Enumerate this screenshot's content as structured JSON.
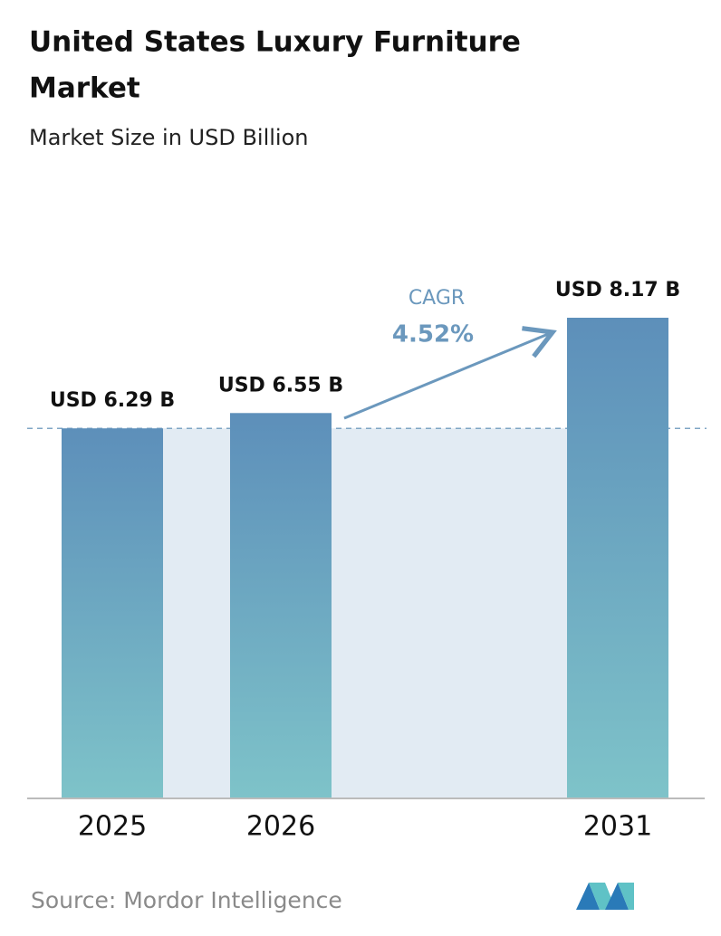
{
  "chart_data": {
    "type": "bar",
    "title_lines": [
      "United States Luxury Furniture",
      "Market"
    ],
    "subtitle": "Market Size in USD Billion",
    "categories": [
      "2025",
      "2026",
      "2031"
    ],
    "values": [
      6.29,
      6.55,
      8.17
    ],
    "value_labels": [
      "USD 6.29 B",
      "USD 6.55 B",
      "USD 8.17 B"
    ],
    "annotation": {
      "label": "CAGR",
      "value": "4.52%"
    },
    "source": "Source:  Mordor Intelligence"
  }
}
